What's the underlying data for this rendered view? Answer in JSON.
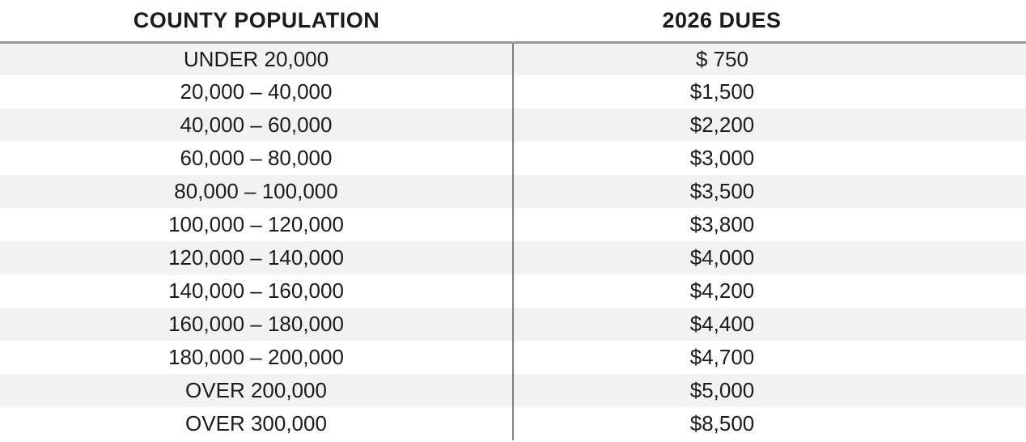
{
  "table": {
    "headers": [
      "COUNTY POPULATION",
      "2026 DUES"
    ],
    "rows": [
      {
        "population": "UNDER 20,000",
        "dues": "$ 750"
      },
      {
        "population": "20,000 – 40,000",
        "dues": "$1,500"
      },
      {
        "population": "40,000 – 60,000",
        "dues": "$2,200"
      },
      {
        "population": "60,000 – 80,000",
        "dues": "$3,000"
      },
      {
        "population": "80,000 – 100,000",
        "dues": "$3,500"
      },
      {
        "population": "100,000 – 120,000",
        "dues": "$3,800"
      },
      {
        "population": "120,000 – 140,000",
        "dues": "$4,000"
      },
      {
        "population": "140,000 – 160,000",
        "dues": "$4,200"
      },
      {
        "population": "160,000 – 180,000",
        "dues": "$4,400"
      },
      {
        "population": "180,000 – 200,000",
        "dues": "$4,700"
      },
      {
        "population": "OVER 200,000",
        "dues": "$5,000"
      },
      {
        "population": "OVER 300,000",
        "dues": "$8,500"
      }
    ],
    "colors": {
      "stripe": "#f2f2f2",
      "header_rule": "#989898",
      "column_divider": "#7f7f7f",
      "text": "#1b1b1b",
      "background": "#ffffff"
    }
  }
}
